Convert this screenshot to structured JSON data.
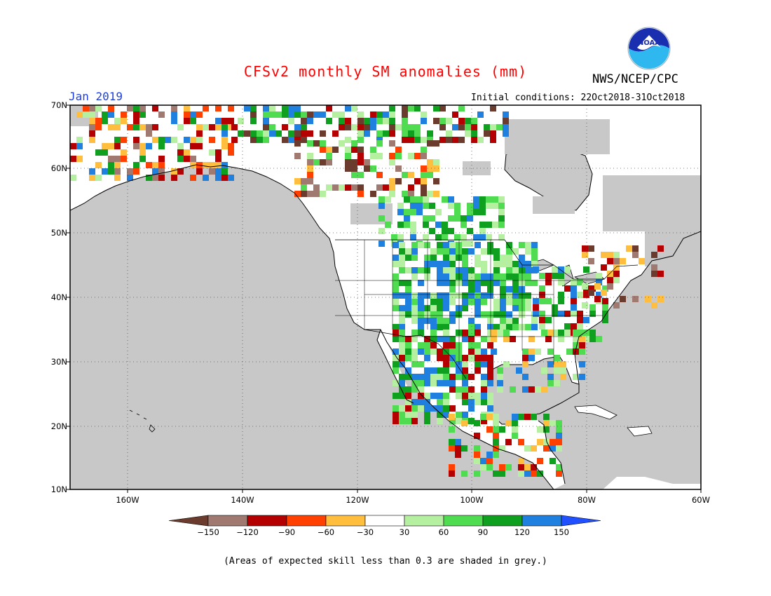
{
  "header": {
    "title": "CFSv2 monthly SM anomalies (mm)",
    "title_color": "#ff0000",
    "month": "Jan 2019",
    "month_color": "#1f3fd9",
    "initial_conditions": "Initial conditions: 22Oct2018-31Oct2018",
    "agency": "NWS/NCEP/CPC",
    "logo_text": "NOAA"
  },
  "map": {
    "lat_labels": [
      "70N",
      "60N",
      "50N",
      "40N",
      "30N",
      "20N",
      "10N"
    ],
    "lon_labels": [
      "160W",
      "140W",
      "120W",
      "100W",
      "80W",
      "60W"
    ],
    "ocean_color": "#c8c8c8",
    "low_skill_color": "#c8c8c8"
  },
  "colorbar": {
    "labels": [
      "-150",
      "-120",
      "-90",
      "-60",
      "-30",
      "30",
      "60",
      "90",
      "120",
      "150"
    ],
    "colors": [
      "#6b3c2e",
      "#a07a70",
      "#b40000",
      "#ff4000",
      "#ffbe3d",
      "#ffffff",
      "#b4f0a0",
      "#50dc50",
      "#10a020",
      "#2080e0",
      "#2050ff"
    ]
  },
  "footnote": "(Areas of expected skill less than 0.3 are shaded in grey.)"
}
